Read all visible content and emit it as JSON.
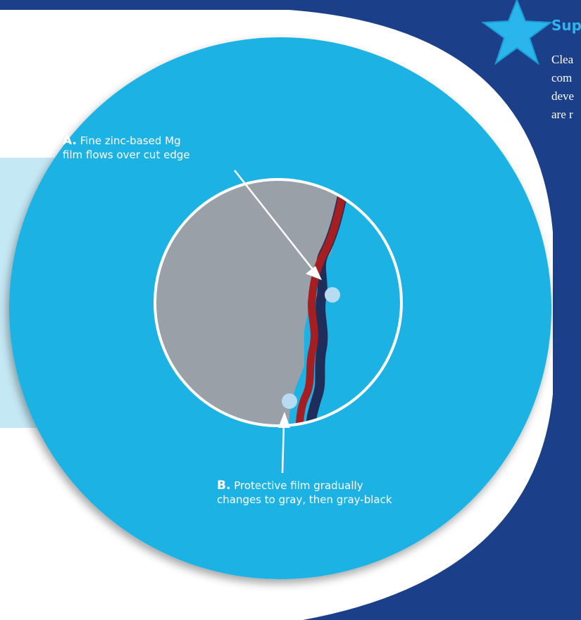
{
  "colors": {
    "background": "#1c3f8a",
    "panel": "#ffffff",
    "outer_circle": "#1cb3e4",
    "light_band": "#c5e8f5",
    "metal_gray": "#9aa0a8",
    "film_red": "#a51e22",
    "film_dark": "#1f2d5a",
    "marker": "#b7dcf2",
    "accent": "#2ab6ec"
  },
  "sidebar": {
    "heading": "Sup",
    "text_lines": [
      "Clea",
      "com",
      "deve",
      "are r"
    ]
  },
  "labels": {
    "a_letter": "A.",
    "a_line1": "Fine zinc-based Mg",
    "a_line2": "film flows over cut edge",
    "b_letter": "B.",
    "b_line1": "Protective film gradually",
    "b_line2": "changes to gray, then gray-black"
  },
  "icons": {
    "star": "star-icon"
  }
}
